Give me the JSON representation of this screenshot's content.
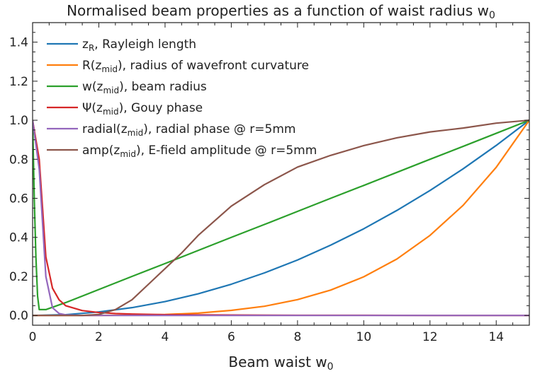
{
  "chart_data": {
    "type": "line",
    "title": "Normalised beam properties as a function of waist radius w",
    "title_sub": "0",
    "xlabel": "Beam waist w",
    "xlabel_sub": "0",
    "ylabel": "",
    "xlim": [
      0,
      15
    ],
    "ylim": [
      -0.05,
      1.5
    ],
    "xticks": [
      0,
      2,
      4,
      6,
      8,
      10,
      12,
      14
    ],
    "yticks": [
      0.0,
      0.2,
      0.4,
      0.6,
      0.8,
      1.0,
      1.2,
      1.4
    ],
    "xtick_labels": [
      "0",
      "2",
      "4",
      "6",
      "8",
      "10",
      "12",
      "14"
    ],
    "ytick_labels": [
      "0.0",
      "0.2",
      "0.4",
      "0.6",
      "0.8",
      "1.0",
      "1.2",
      "1.4"
    ],
    "grid": false,
    "legend_position": "top-left",
    "series": [
      {
        "name": "z_R, Rayleigh length",
        "legend": {
          "pre": "z",
          "sub": "R",
          "post": ", Rayleigh length"
        },
        "color": "#1f77b4",
        "x": [
          0,
          1,
          2,
          3,
          4,
          5,
          6,
          7,
          8,
          9,
          10,
          11,
          12,
          13,
          14,
          15
        ],
        "y": [
          0.0,
          0.004,
          0.018,
          0.04,
          0.071,
          0.111,
          0.16,
          0.218,
          0.284,
          0.36,
          0.444,
          0.538,
          0.64,
          0.751,
          0.871,
          1.0
        ]
      },
      {
        "name": "R(z_mid), radius of wavefront curvature",
        "legend": {
          "pre": "R(z",
          "sub": "mid",
          "post": "), radius of wavefront curvature"
        },
        "color": "#ff7f0e",
        "x": [
          0,
          1,
          2,
          3,
          4,
          5,
          6,
          7,
          8,
          9,
          10,
          11,
          12,
          13,
          14,
          15
        ],
        "y": [
          0.0,
          0.0,
          0.0,
          0.002,
          0.005,
          0.012,
          0.026,
          0.047,
          0.081,
          0.13,
          0.198,
          0.289,
          0.41,
          0.564,
          0.759,
          1.0
        ]
      },
      {
        "name": "w(z_mid), beam radius",
        "legend": {
          "pre": "w(z",
          "sub": "mid",
          "post": "), beam radius"
        },
        "color": "#2ca02c",
        "x": [
          0,
          0.05,
          0.1,
          0.15,
          0.2,
          0.4,
          1,
          2,
          3,
          4,
          5,
          6,
          7,
          8,
          9,
          10,
          11,
          12,
          13,
          14,
          15
        ],
        "y": [
          1.0,
          0.6,
          0.3,
          0.1,
          0.03,
          0.03,
          0.066,
          0.133,
          0.2,
          0.266,
          0.333,
          0.4,
          0.466,
          0.533,
          0.6,
          0.666,
          0.733,
          0.8,
          0.866,
          0.933,
          1.0
        ]
      },
      {
        "name": "Ψ(z_mid), Gouy phase",
        "legend": {
          "pre": "Ψ(z",
          "sub": "mid",
          "post": "), Gouy phase"
        },
        "color": "#d62728",
        "x": [
          0,
          0.2,
          0.4,
          0.6,
          0.8,
          1.0,
          1.5,
          2.0,
          2.5,
          3,
          4,
          5,
          6,
          8,
          10,
          12,
          15
        ],
        "y": [
          1.0,
          0.8,
          0.3,
          0.14,
          0.08,
          0.05,
          0.025,
          0.015,
          0.01,
          0.007,
          0.004,
          0.003,
          0.002,
          0.001,
          0.001,
          0.0,
          0.0
        ]
      },
      {
        "name": "radial(z_mid), radial phase @ r=5mm",
        "legend": {
          "pre": "radial(z",
          "sub": "mid",
          "post": "), radial phase @ r=5mm"
        },
        "color": "#9467bd",
        "x": [
          0,
          0.2,
          0.4,
          0.6,
          0.8,
          1.0,
          1.5,
          2,
          4,
          8,
          15
        ],
        "y": [
          1.0,
          0.75,
          0.2,
          0.04,
          0.01,
          0.003,
          0.0,
          0.0,
          0.0,
          0.0,
          0.0
        ]
      },
      {
        "name": "amp(z_mid), E-field amplitude @ r=5mm",
        "legend": {
          "pre": "amp(z",
          "sub": "mid",
          "post": "), E-field amplitude @ r=5mm"
        },
        "color": "#8c564b",
        "x": [
          0,
          1,
          1.5,
          2,
          2.5,
          3,
          3.5,
          4,
          4.5,
          5,
          6,
          7,
          8,
          9,
          10,
          11,
          12,
          13,
          14,
          15
        ],
        "y": [
          0.0,
          0.0,
          0.0,
          0.005,
          0.03,
          0.08,
          0.16,
          0.24,
          0.32,
          0.41,
          0.56,
          0.67,
          0.76,
          0.82,
          0.87,
          0.91,
          0.94,
          0.96,
          0.985,
          1.0
        ]
      }
    ]
  }
}
